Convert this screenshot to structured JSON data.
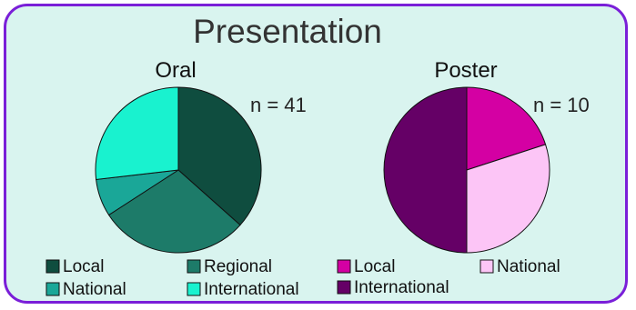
{
  "figure": {
    "title": "Presentation"
  },
  "colors": {
    "panel_background": "#d9f4ef",
    "panel_border": "#7a1fd8",
    "oral_local": "#0f4d3f",
    "oral_regional": "#1d7b69",
    "oral_national": "#1aa798",
    "oral_international": "#19f2cf",
    "poster_local": "#d400a3",
    "poster_national": "#fcc5f6",
    "poster_international": "#650066"
  },
  "chart_data": [
    {
      "type": "pie",
      "title": "Oral",
      "n_label": "n = 41",
      "categories": [
        "Local",
        "Regional",
        "National",
        "International"
      ],
      "values": [
        15,
        12,
        3,
        11
      ],
      "colors": [
        "#0f4d3f",
        "#1d7b69",
        "#1aa798",
        "#19f2cf"
      ],
      "legend": "bottom"
    },
    {
      "type": "pie",
      "title": "Poster",
      "n_label": "n = 10",
      "categories": [
        "Local",
        "National",
        "International"
      ],
      "values": [
        2,
        3,
        5
      ],
      "colors": [
        "#d400a3",
        "#fcc5f6",
        "#650066"
      ],
      "legend": "bottom"
    }
  ]
}
